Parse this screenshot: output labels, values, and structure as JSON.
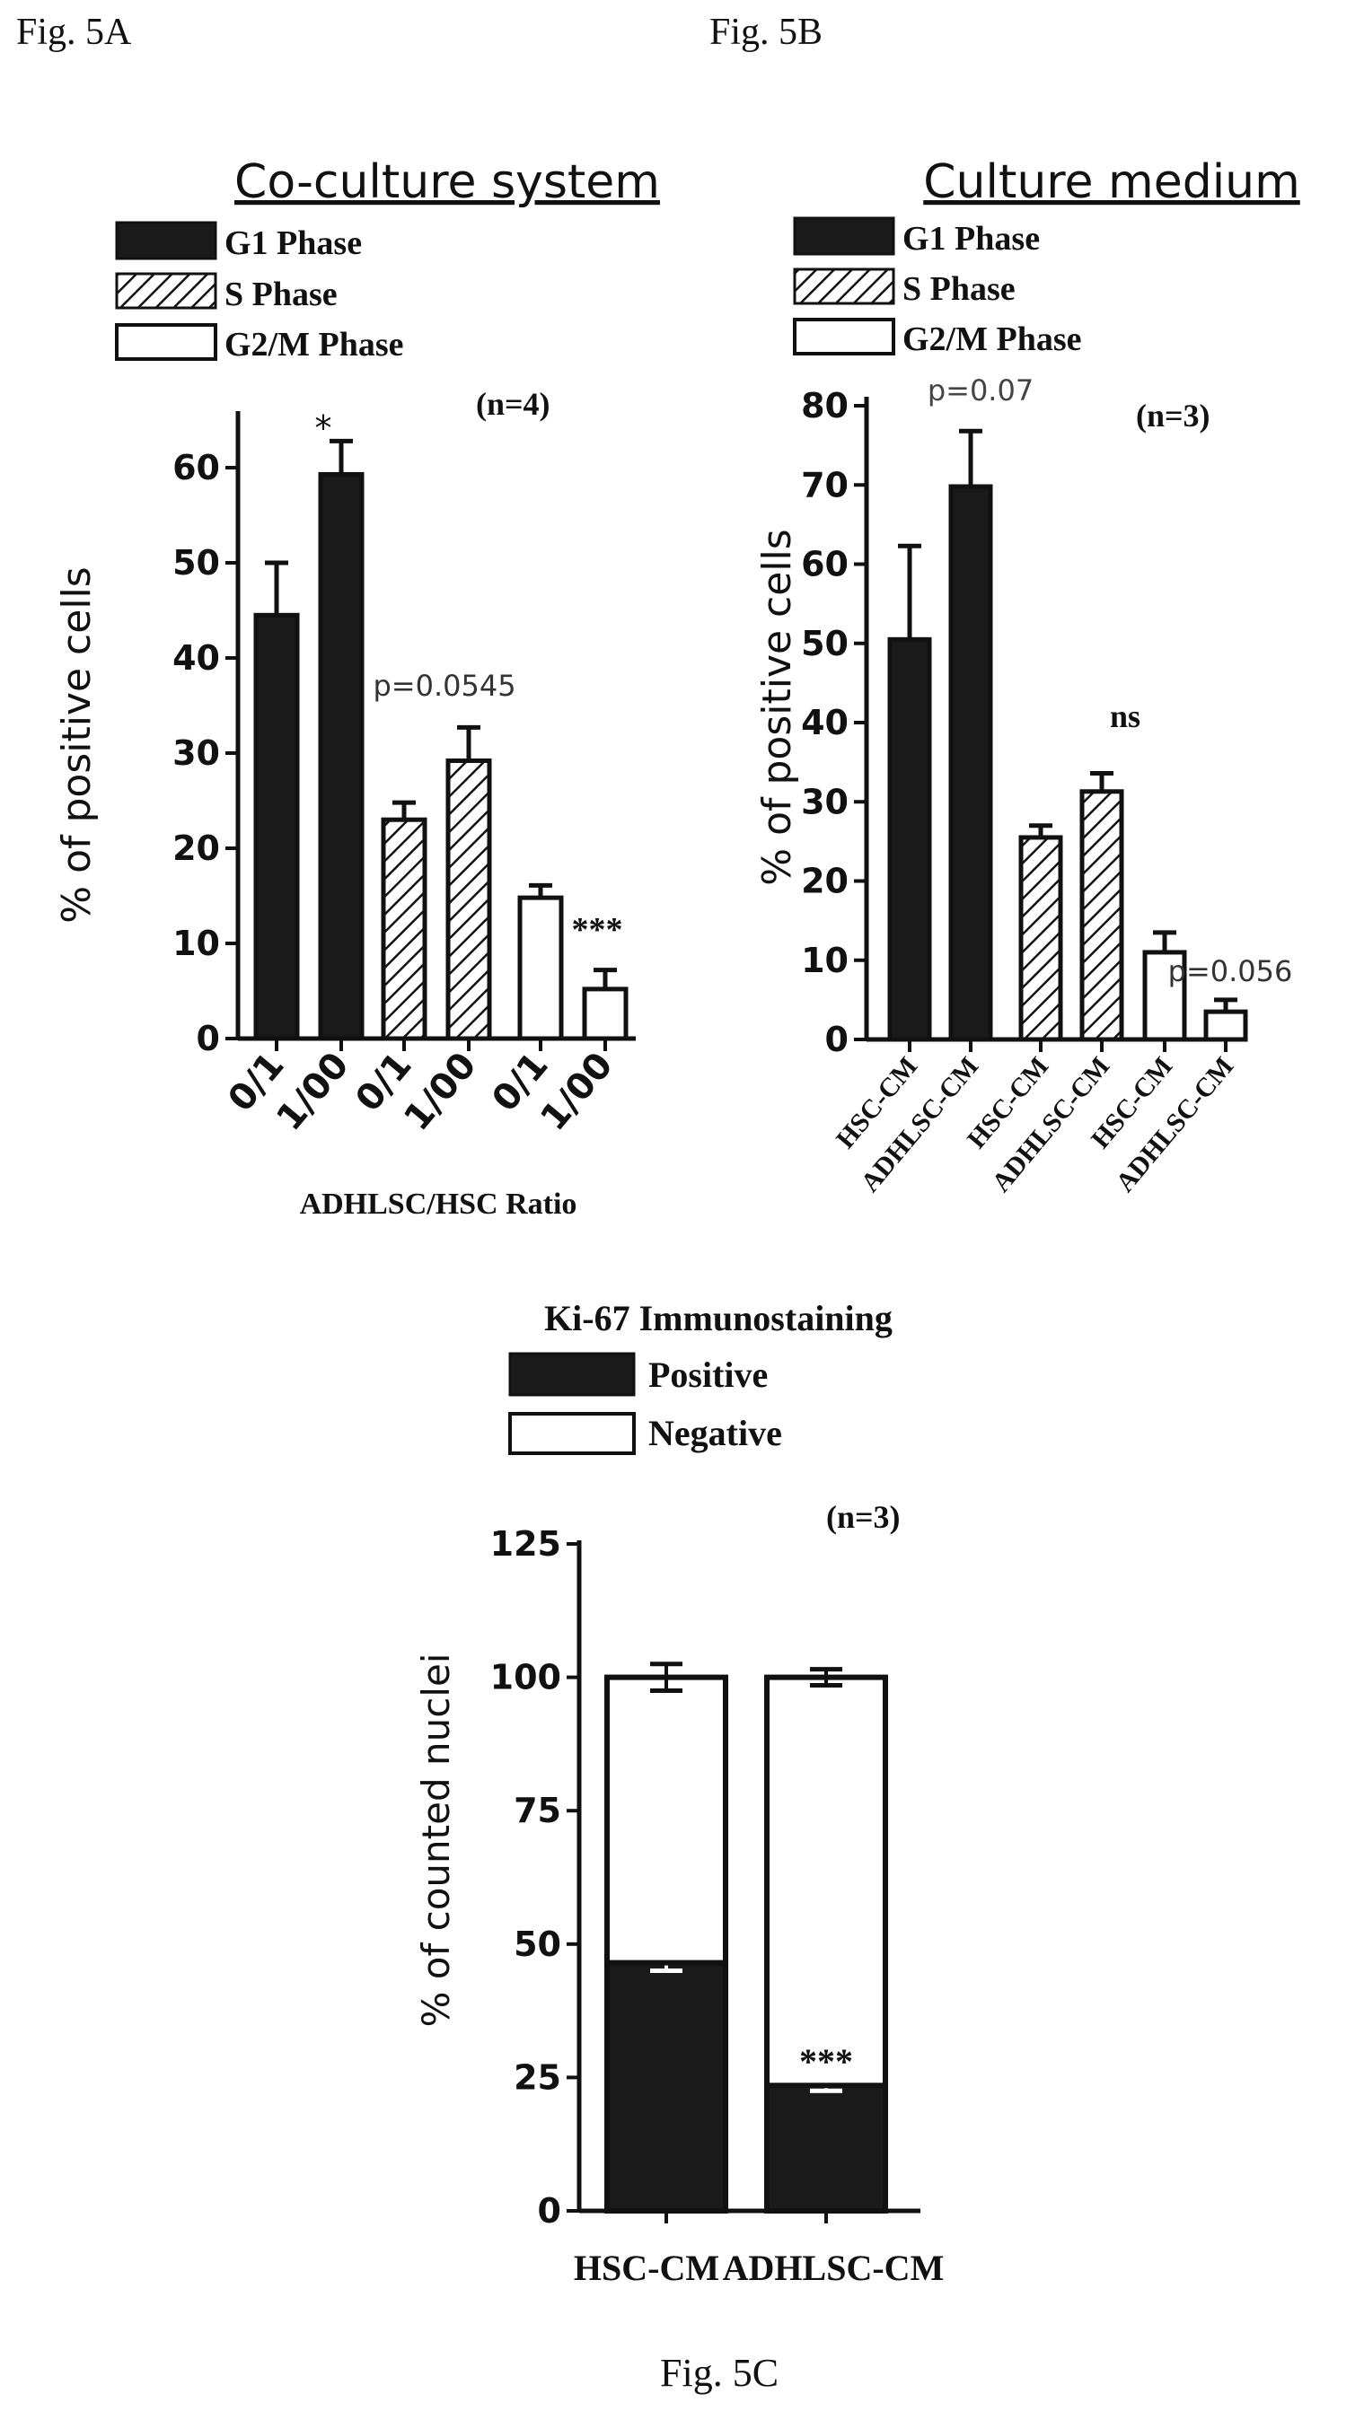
{
  "figure_labels": {
    "a": "Fig. 5A",
    "b": "Fig. 5B",
    "c": "Fig. 5C"
  },
  "legend_phases": {
    "g1": "G1 Phase",
    "s": "S Phase",
    "g2m": "G2/M Phase"
  },
  "legend_ki67": {
    "positive": "Positive",
    "negative": "Negative"
  },
  "colors": {
    "filled": "#1a1a1a",
    "hatched": "#1a1a1a",
    "open": "#ffffff",
    "ink": "#111111"
  },
  "chart_data": [
    {
      "id": "fig5a",
      "type": "bar",
      "title": "Co-culture system",
      "sample_size": "(n=4)",
      "xlabel": "ADHLSC/HSC Ratio",
      "ylabel": "% of positive cells",
      "ylim": [
        0,
        65
      ],
      "yticks": [
        0,
        10,
        20,
        30,
        40,
        50,
        60
      ],
      "groups": [
        {
          "phase": "G1 Phase",
          "fill": "solid",
          "bars": [
            {
              "label": "0/1",
              "value": 44.5,
              "error": 5.5
            },
            {
              "label": "1/00",
              "value": 59.3,
              "error": 3.5
            }
          ],
          "annotation": "*"
        },
        {
          "phase": "S Phase",
          "fill": "hatched",
          "bars": [
            {
              "label": "0/1",
              "value": 23,
              "error": 1.8
            },
            {
              "label": "1/00",
              "value": 29.2,
              "error": 3.5
            }
          ],
          "annotation": "p=0.0545"
        },
        {
          "phase": "G2/M Phase",
          "fill": "open",
          "bars": [
            {
              "label": "0/1",
              "value": 14.8,
              "error": 1.3
            },
            {
              "label": "1/00",
              "value": 5.2,
              "error": 2
            }
          ],
          "annotation": "***"
        }
      ]
    },
    {
      "id": "fig5b",
      "type": "bar",
      "title": "Culture medium",
      "sample_size": "(n=3)",
      "xlabel": "",
      "ylabel": "% of positive cells",
      "ylim": [
        0,
        80
      ],
      "yticks": [
        0,
        10,
        20,
        30,
        40,
        50,
        60,
        70,
        80
      ],
      "groups": [
        {
          "phase": "G1 Phase",
          "fill": "solid",
          "bars": [
            {
              "label": "HSC-CM",
              "value": 50.5,
              "error": 11.8
            },
            {
              "label": "ADHLSC-CM",
              "value": 69.8,
              "error": 7
            }
          ],
          "annotation": "p=0.07"
        },
        {
          "phase": "S Phase",
          "fill": "hatched",
          "bars": [
            {
              "label": "HSC-CM",
              "value": 25.5,
              "error": 1.5
            },
            {
              "label": "ADHLSC-CM",
              "value": 31.3,
              "error": 2.3
            }
          ],
          "annotation": "ns"
        },
        {
          "phase": "G2/M Phase",
          "fill": "open",
          "bars": [
            {
              "label": "HSC-CM",
              "value": 11,
              "error": 2.5
            },
            {
              "label": "ADHLSC-CM",
              "value": 3.5,
              "error": 1.5
            }
          ],
          "annotation": "p=0.056"
        }
      ]
    },
    {
      "id": "fig5c",
      "type": "bar",
      "stacked": true,
      "title": "Ki-67 Immunostaining",
      "sample_size": "(n=3)",
      "xlabel": "",
      "ylabel": "% of counted nuclei",
      "ylim": [
        0,
        125
      ],
      "yticks": [
        0,
        25,
        50,
        75,
        100,
        125
      ],
      "categories": [
        "HSC-CM",
        "ADHLSC-CM"
      ],
      "series": [
        {
          "name": "Positive",
          "fill": "solid",
          "values": [
            46.5,
            23.5
          ],
          "errors": [
            1.5,
            1
          ]
        },
        {
          "name": "Negative",
          "fill": "open",
          "values": [
            53.5,
            76.5
          ],
          "errors": [
            2.5,
            1.5
          ]
        }
      ],
      "annotation": "***"
    }
  ]
}
